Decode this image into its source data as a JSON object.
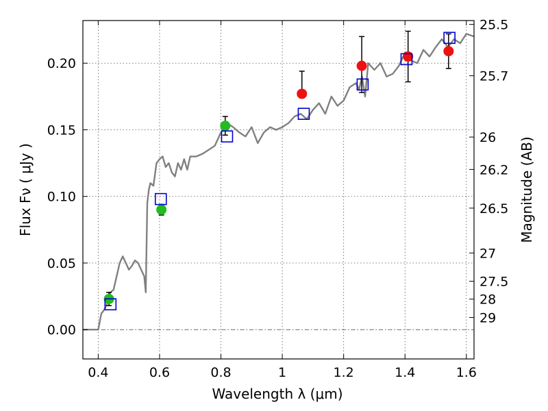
{
  "chart_data": {
    "type": "scatter",
    "title": "",
    "xlabel": "Wavelength  λ (μm)",
    "ylabel": "Flux  Fν  ( μJy )",
    "y2label": "Magnitude (AB)",
    "xlim": [
      0.35,
      1.625
    ],
    "ylim": [
      -0.022,
      0.232
    ],
    "grid": true,
    "x_ticks": [
      {
        "value": 0.4,
        "label": "0.4"
      },
      {
        "value": 0.6,
        "label": "0.6"
      },
      {
        "value": 0.8,
        "label": "0.8"
      },
      {
        "value": 1.0,
        "label": "1"
      },
      {
        "value": 1.2,
        "label": "1.2"
      },
      {
        "value": 1.4,
        "label": "1.4"
      },
      {
        "value": 1.6,
        "label": "1.6"
      }
    ],
    "y_ticks": [
      {
        "value": 0.0,
        "label": "0.00"
      },
      {
        "value": 0.05,
        "label": "0.05"
      },
      {
        "value": 0.1,
        "label": "0.10"
      },
      {
        "value": 0.15,
        "label": "0.15"
      },
      {
        "value": 0.2,
        "label": "0.20"
      }
    ],
    "y2_ticks": [
      {
        "mag": 25.5,
        "label": "25.5"
      },
      {
        "mag": 25.7,
        "label": "25.7"
      },
      {
        "mag": 26,
        "label": "26"
      },
      {
        "mag": 26.2,
        "label": "26.2"
      },
      {
        "mag": 26.5,
        "label": "26.5"
      },
      {
        "mag": 27,
        "label": "27"
      },
      {
        "mag": 27.5,
        "label": "27.5"
      },
      {
        "mag": 28,
        "label": "28"
      },
      {
        "mag": 29,
        "label": "29"
      }
    ],
    "colors": {
      "spectrum": "#808080",
      "optical": "#22bb22",
      "infrared": "#ee1111",
      "model": "#0000cc",
      "errorbar": "#000000",
      "grid": "#555555"
    },
    "spectrum": {
      "x": [
        0.35,
        0.4,
        0.41,
        0.42,
        0.43,
        0.44,
        0.45,
        0.46,
        0.47,
        0.48,
        0.49,
        0.5,
        0.51,
        0.52,
        0.53,
        0.54,
        0.55,
        0.555,
        0.56,
        0.565,
        0.57,
        0.58,
        0.59,
        0.6,
        0.61,
        0.62,
        0.63,
        0.64,
        0.65,
        0.66,
        0.67,
        0.68,
        0.69,
        0.7,
        0.72,
        0.74,
        0.76,
        0.78,
        0.8,
        0.82,
        0.84,
        0.86,
        0.88,
        0.9,
        0.92,
        0.94,
        0.96,
        0.98,
        1.0,
        1.02,
        1.04,
        1.06,
        1.08,
        1.1,
        1.12,
        1.14,
        1.16,
        1.18,
        1.2,
        1.22,
        1.24,
        1.25,
        1.26,
        1.27,
        1.28,
        1.3,
        1.32,
        1.34,
        1.36,
        1.38,
        1.4,
        1.42,
        1.44,
        1.46,
        1.48,
        1.5,
        1.52,
        1.54,
        1.56,
        1.58,
        1.6,
        1.625
      ],
      "y": [
        0.0,
        0.0,
        0.012,
        0.015,
        0.02,
        0.028,
        0.03,
        0.04,
        0.05,
        0.055,
        0.05,
        0.045,
        0.048,
        0.052,
        0.05,
        0.045,
        0.04,
        0.028,
        0.095,
        0.105,
        0.11,
        0.108,
        0.125,
        0.128,
        0.13,
        0.122,
        0.125,
        0.118,
        0.115,
        0.125,
        0.12,
        0.128,
        0.12,
        0.13,
        0.13,
        0.132,
        0.135,
        0.138,
        0.148,
        0.155,
        0.152,
        0.148,
        0.145,
        0.152,
        0.14,
        0.148,
        0.152,
        0.15,
        0.152,
        0.155,
        0.16,
        0.162,
        0.158,
        0.165,
        0.17,
        0.162,
        0.175,
        0.168,
        0.172,
        0.182,
        0.185,
        0.18,
        0.19,
        0.175,
        0.2,
        0.195,
        0.2,
        0.19,
        0.192,
        0.198,
        0.208,
        0.202,
        0.2,
        0.21,
        0.205,
        0.212,
        0.218,
        0.212,
        0.218,
        0.215,
        0.222,
        0.22
      ]
    },
    "series": [
      {
        "marker": "circle",
        "color": "optical",
        "x": [
          0.435,
          0.606,
          0.814
        ],
        "y": [
          0.023,
          0.09,
          0.153
        ],
        "yerr": [
          0.005,
          0.004,
          0.007
        ]
      },
      {
        "marker": "circle",
        "color": "infrared",
        "x": [
          1.064,
          1.259,
          1.41,
          1.542
        ],
        "y": [
          0.177,
          0.198,
          0.205,
          0.209
        ],
        "yerr_low": [
          0.0,
          0.02,
          0.019,
          0.013
        ],
        "yerr_high": [
          0.017,
          0.022,
          0.019,
          0.013
        ]
      },
      {
        "marker": "open-square",
        "color": "model",
        "x": [
          0.44,
          0.604,
          0.82,
          1.07,
          1.262,
          1.405,
          1.545
        ],
        "y": [
          0.019,
          0.098,
          0.145,
          0.162,
          0.184,
          0.203,
          0.219
        ]
      }
    ]
  }
}
